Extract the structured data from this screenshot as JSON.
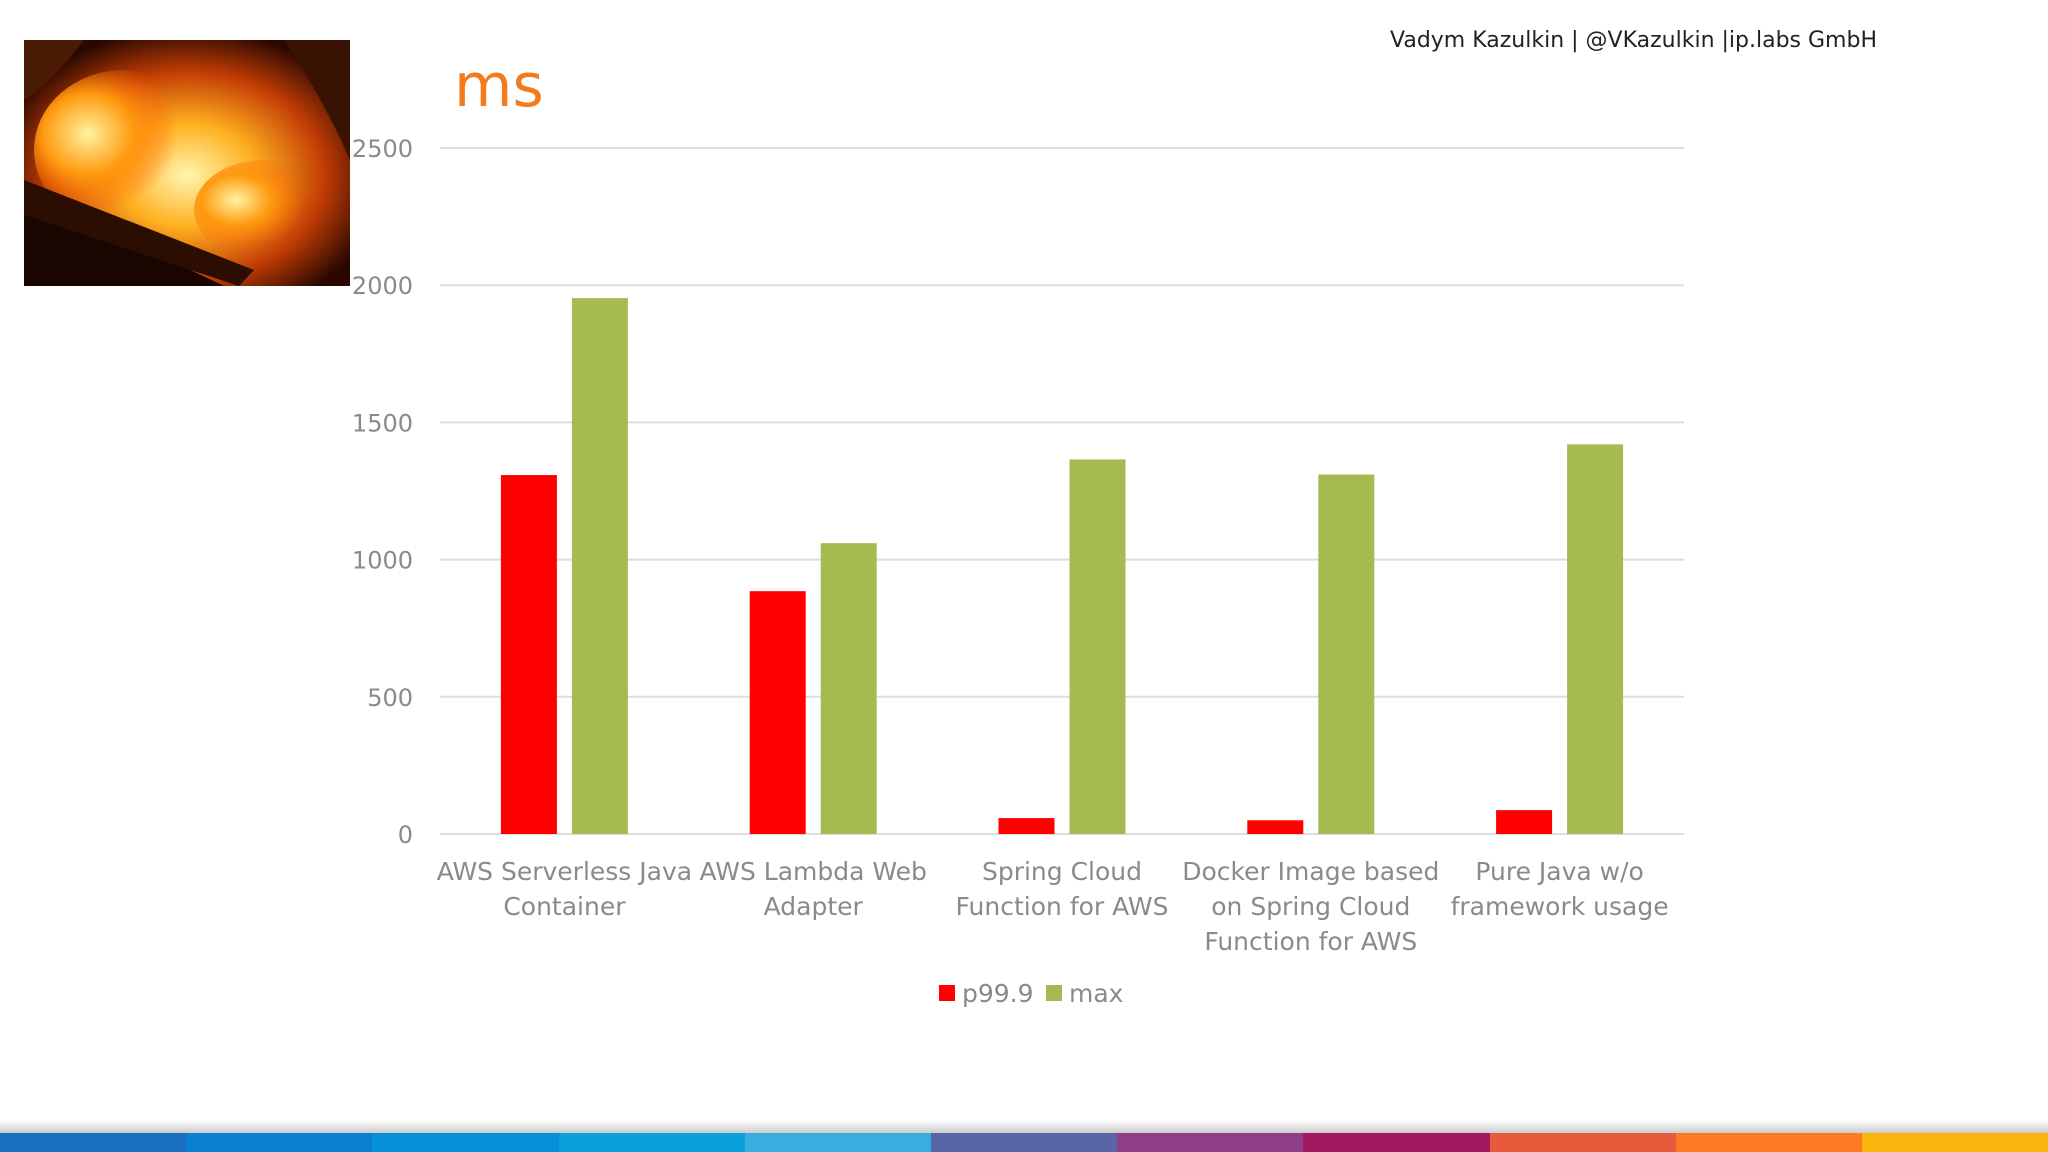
{
  "byline": "Vadym Kazulkin | @VKazulkin |ip.labs GmbH",
  "title": "ms",
  "colors": {
    "title": "#f07c1f",
    "p999": "#ff0000",
    "max": "#a5bb52",
    "grid": "#dddddd",
    "axis_text": "#8a8a8a"
  },
  "footer_colors": [
    "#1b6fc1",
    "#0b7fd0",
    "#0590d8",
    "#0aa0de",
    "#38addf",
    "#5866a8",
    "#8d3e84",
    "#a21960",
    "#e75a3c",
    "#fb7a23",
    "#fbb50f"
  ],
  "chart_data": {
    "type": "bar",
    "title": "ms",
    "categories": [
      [
        "AWS Serverless Java",
        "Container"
      ],
      [
        "AWS Lambda Web",
        "Adapter"
      ],
      [
        "Spring Cloud",
        "Function for AWS"
      ],
      [
        "Docker Image based",
        "on Spring Cloud",
        "Function for AWS"
      ],
      [
        "Pure Java w/o",
        "framework usage"
      ]
    ],
    "series": [
      {
        "name": "p99.9",
        "color": "#ff0000",
        "values": [
          1308,
          885,
          58,
          50,
          87
        ]
      },
      {
        "name": "max",
        "color": "#a5bb52",
        "values": [
          1953,
          1060,
          1365,
          1310,
          1420
        ]
      }
    ],
    "ylim": [
      0,
      2500
    ],
    "yticks": [
      0,
      500,
      1000,
      1500,
      2000,
      2500
    ],
    "legend": "bottom",
    "grid": true
  }
}
